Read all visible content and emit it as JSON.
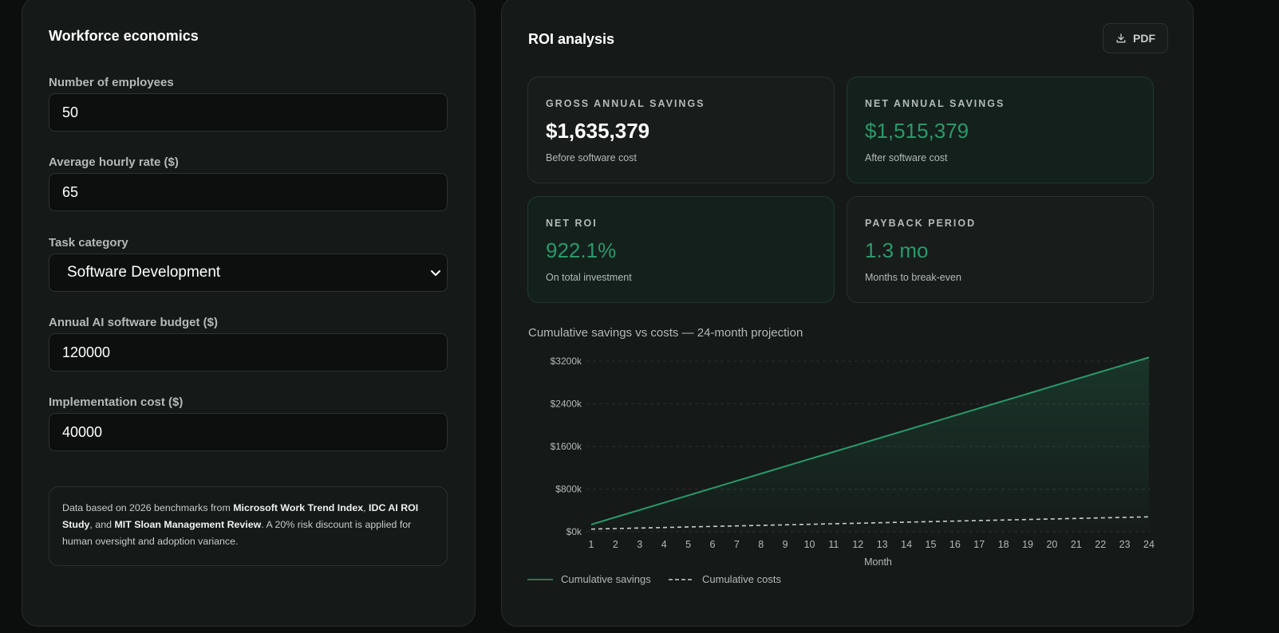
{
  "workforce": {
    "title": "Workforce economics",
    "employees_label": "Number of employees",
    "employees_value": "50",
    "hourly_label": "Average hourly rate ($)",
    "hourly_value": "65",
    "task_label": "Task category",
    "task_value": "Software Development",
    "budget_label": "Annual AI software budget ($)",
    "budget_value": "120000",
    "impl_label": "Implementation cost ($)",
    "impl_value": "40000",
    "note": {
      "p1": "Data based on 2026 benchmarks from ",
      "b1": "Microsoft Work Trend Index",
      "p2": ", ",
      "b2": "IDC AI ROI Study",
      "p3": ", and ",
      "b3": "MIT Sloan Management Review",
      "p4": ". A 20% risk discount is applied for human oversight and adoption variance."
    }
  },
  "roi": {
    "title": "ROI analysis",
    "pdf_label": "PDF",
    "cards": [
      {
        "label": "GROSS ANNUAL SAVINGS",
        "value": "$1,635,379",
        "sub": "Before software cost"
      },
      {
        "label": "NET ANNUAL SAVINGS",
        "value": "$1,515,379",
        "sub": "After software cost"
      },
      {
        "label": "NET ROI",
        "value": "922.1%",
        "sub": "On total investment"
      },
      {
        "label": "PAYBACK PERIOD",
        "value": "1.3 mo",
        "sub": "Months to break-even"
      }
    ],
    "chart_title": "Cumulative savings vs costs — 24-month projection"
  },
  "colors": {
    "accent": "#2a9a6a",
    "cost_line": "#c9cfcc",
    "grid": "#2a302e",
    "tick_text": "#b3bab7"
  },
  "chart_data": {
    "type": "line",
    "x": [
      1,
      2,
      3,
      4,
      5,
      6,
      7,
      8,
      9,
      10,
      11,
      12,
      13,
      14,
      15,
      16,
      17,
      18,
      19,
      20,
      21,
      22,
      23,
      24
    ],
    "x_tick_labels": [
      "1",
      "2",
      "3",
      "4",
      "5",
      "6",
      "7",
      "8",
      "9",
      "10",
      "11",
      "12",
      "13",
      "14",
      "15",
      "16",
      "17",
      "18",
      "19",
      "20",
      "21",
      "22",
      "23",
      "24"
    ],
    "xlabel": "Month",
    "ylabel": "",
    "ylim": [
      0,
      3200
    ],
    "y_ticks": [
      0,
      800,
      1600,
      2400,
      3200
    ],
    "y_tick_labels": [
      "$0k",
      "$800k",
      "$1600k",
      "$2400k",
      "$3200k"
    ],
    "grid": true,
    "legend_position": "bottom-left",
    "series": [
      {
        "name": "Cumulative savings",
        "style": "solid-area",
        "values": [
          136,
          273,
          409,
          545,
          681,
          818,
          954,
          1090,
          1227,
          1363,
          1499,
          1635,
          1772,
          1908,
          2044,
          2180,
          2317,
          2453,
          2589,
          2726,
          2862,
          2998,
          3134,
          3271
        ]
      },
      {
        "name": "Cumulative costs",
        "style": "dashed",
        "values": [
          50,
          60,
          70,
          80,
          90,
          100,
          110,
          120,
          130,
          140,
          150,
          160,
          170,
          180,
          190,
          200,
          210,
          220,
          230,
          240,
          250,
          260,
          270,
          280
        ]
      }
    ]
  }
}
